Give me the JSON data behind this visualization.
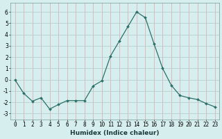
{
  "x": [
    0,
    1,
    2,
    3,
    4,
    5,
    6,
    7,
    8,
    9,
    10,
    11,
    12,
    13,
    14,
    15,
    16,
    17,
    18,
    19,
    20,
    21,
    22,
    23
  ],
  "y": [
    0,
    -1.2,
    -1.9,
    -1.6,
    -2.6,
    -2.2,
    -1.85,
    -1.85,
    -1.85,
    -0.55,
    -0.1,
    2.1,
    3.4,
    4.7,
    6.0,
    5.5,
    3.2,
    1.0,
    -0.5,
    -1.4,
    -1.6,
    -1.75,
    -2.1,
    -2.4
  ],
  "line_color": "#2d7068",
  "marker": "D",
  "marker_size": 2.0,
  "bg_color": "#d6eeee",
  "grid_color_h": "#b8cece",
  "grid_color_v": "#dbb0b0",
  "xlabel": "Humidex (Indice chaleur)",
  "xlim": [
    -0.5,
    23.5
  ],
  "ylim": [
    -3.5,
    6.8
  ],
  "yticks": [
    -3,
    -2,
    -1,
    0,
    1,
    2,
    3,
    4,
    5,
    6
  ],
  "xticks": [
    0,
    1,
    2,
    3,
    4,
    5,
    6,
    7,
    8,
    9,
    10,
    11,
    12,
    13,
    14,
    15,
    16,
    17,
    18,
    19,
    20,
    21,
    22,
    23
  ],
  "tick_fontsize": 5.5,
  "xlabel_fontsize": 6.5
}
